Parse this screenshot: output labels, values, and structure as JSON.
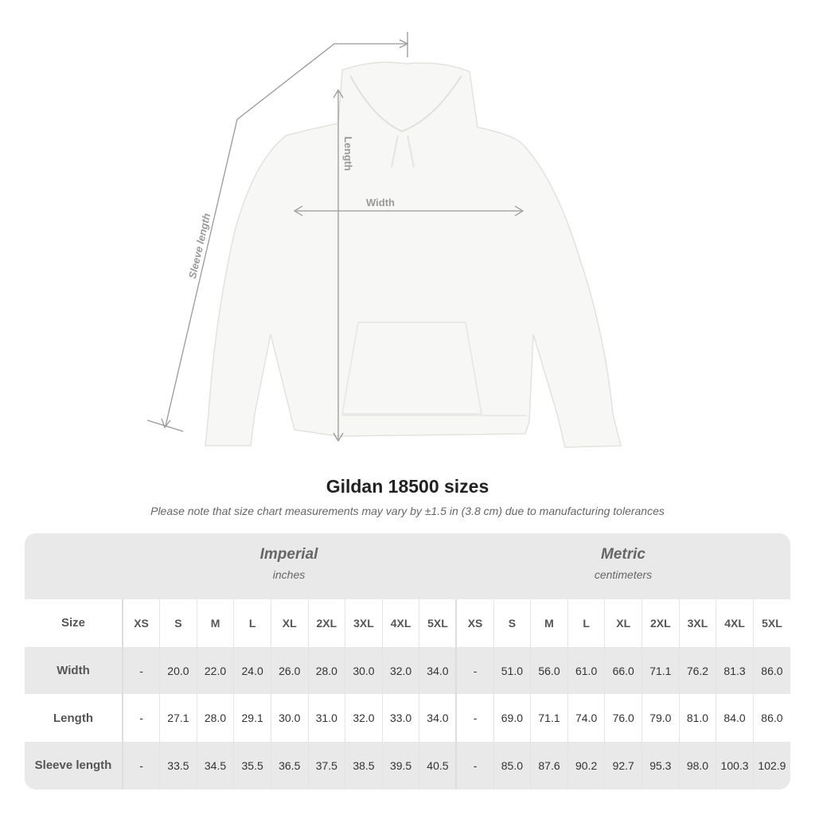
{
  "diagram": {
    "length_label": "Length",
    "width_label": "Width",
    "sleeve_label": "Sleeve length"
  },
  "header": {
    "title": "Gildan 18500 sizes",
    "note": "Please note that size chart measurements may vary by ±1.5 in (3.8 cm) due to manufacturing tolerances"
  },
  "table": {
    "imperial": {
      "name": "Imperial",
      "unit": "inches"
    },
    "metric": {
      "name": "Metric",
      "unit": "centimeters"
    },
    "size_label": "Size",
    "sizes": [
      "XS",
      "S",
      "M",
      "L",
      "XL",
      "2XL",
      "3XL",
      "4XL",
      "5XL"
    ],
    "rows": [
      {
        "label": "Width",
        "imperial": [
          "-",
          "20.0",
          "22.0",
          "24.0",
          "26.0",
          "28.0",
          "30.0",
          "32.0",
          "34.0"
        ],
        "metric": [
          "-",
          "51.0",
          "56.0",
          "61.0",
          "66.0",
          "71.1",
          "76.2",
          "81.3",
          "86.0"
        ]
      },
      {
        "label": "Length",
        "imperial": [
          "-",
          "27.1",
          "28.0",
          "29.1",
          "30.0",
          "31.0",
          "32.0",
          "33.0",
          "34.0"
        ],
        "metric": [
          "-",
          "69.0",
          "71.1",
          "74.0",
          "76.0",
          "79.0",
          "81.0",
          "84.0",
          "86.0"
        ]
      },
      {
        "label": "Sleeve length",
        "imperial": [
          "-",
          "33.5",
          "34.5",
          "35.5",
          "36.5",
          "37.5",
          "38.5",
          "39.5",
          "40.5"
        ],
        "metric": [
          "-",
          "85.0",
          "87.6",
          "90.2",
          "92.7",
          "95.3",
          "98.0",
          "100.3",
          "102.9"
        ]
      }
    ]
  }
}
